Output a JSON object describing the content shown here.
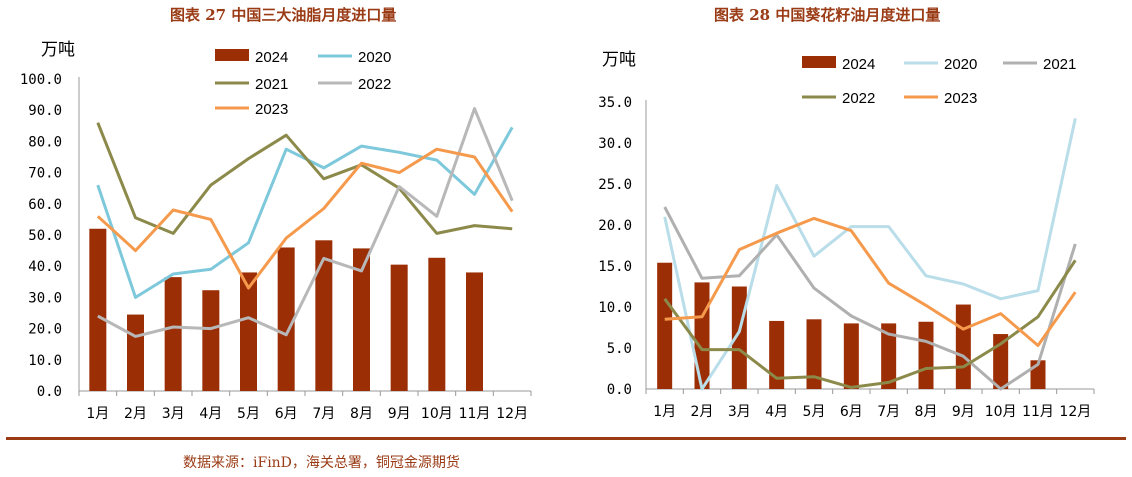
{
  "source": "数据来源：iFinD，海关总署，铜冠金源期货",
  "colors": {
    "c2024": "#9b2e05",
    "c2020": "#7ec8dc",
    "c2021": "#8c8a4a",
    "c2022": "#b8b8b8",
    "c2023": "#f59a4c",
    "c2020_light": "#b9dde9",
    "c2022_olive": "#8c8a4a",
    "c2021_grey": "#b0b0b0",
    "title": "#9a3b15"
  },
  "chart_data": [
    {
      "type": "bar+line",
      "title": "图表 27  中国三大油脂月度进口量",
      "ylabel": "万吨",
      "ylim": [
        0,
        100
      ],
      "yticks": [
        "0.0",
        "10.0",
        "20.0",
        "30.0",
        "40.0",
        "50.0",
        "60.0",
        "70.0",
        "80.0",
        "90.0",
        "100.0"
      ],
      "categories": [
        "1月",
        "2月",
        "3月",
        "4月",
        "5月",
        "6月",
        "7月",
        "8月",
        "9月",
        "10月",
        "11月",
        "12月"
      ],
      "bar_series": {
        "name": "2024",
        "values": [
          52,
          24.5,
          36.5,
          32.3,
          38,
          46,
          48.3,
          45.7,
          40.5,
          42.7,
          38,
          null
        ]
      },
      "line_series": [
        {
          "name": "2020",
          "values": [
            66,
            30,
            37.5,
            39,
            47.5,
            77.5,
            71.5,
            78.5,
            76.5,
            74,
            63,
            84.5
          ]
        },
        {
          "name": "2021",
          "values": [
            86,
            55.5,
            50.5,
            66,
            74.5,
            82,
            68,
            72.5,
            65,
            50.5,
            53,
            52
          ]
        },
        {
          "name": "2022",
          "values": [
            24,
            17.5,
            20.5,
            20,
            23.5,
            18,
            42.5,
            38.5,
            65.5,
            56,
            90.5,
            61
          ]
        },
        {
          "name": "2023",
          "values": [
            56,
            45,
            58,
            55,
            33,
            49,
            58.5,
            73,
            70,
            77.5,
            75,
            57.5
          ]
        }
      ],
      "legend": [
        "2024",
        "2020",
        "2021",
        "2022",
        "2023"
      ]
    },
    {
      "type": "bar+line",
      "title": "图表 28  中国葵花籽油月度进口量",
      "ylabel": "万吨",
      "ylim": [
        0,
        35
      ],
      "yticks": [
        "0.0",
        "5.0",
        "10.0",
        "15.0",
        "20.0",
        "25.0",
        "30.0",
        "35.0"
      ],
      "categories": [
        "1月",
        "2月",
        "3月",
        "4月",
        "5月",
        "6月",
        "7月",
        "8月",
        "9月",
        "10月",
        "11月",
        "12月"
      ],
      "bar_series": {
        "name": "2024",
        "values": [
          15.4,
          13,
          12.5,
          8.3,
          8.5,
          8,
          8,
          8.2,
          10.3,
          6.7,
          3.5,
          null
        ]
      },
      "line_series": [
        {
          "name": "2020",
          "values": [
            21,
            0,
            7,
            24.8,
            16.2,
            19.8,
            19.8,
            13.8,
            12.8,
            11,
            12,
            33
          ]
        },
        {
          "name": "2021",
          "values": [
            22.2,
            13.5,
            13.8,
            18.8,
            12.3,
            8.9,
            6.7,
            5.8,
            4,
            0,
            3,
            17.7
          ]
        },
        {
          "name": "2022",
          "values": [
            11,
            4.8,
            4.8,
            1.3,
            1.5,
            0.2,
            0.8,
            2.5,
            2.7,
            5.5,
            8.8,
            15.7
          ]
        },
        {
          "name": "2023",
          "values": [
            8.5,
            8.8,
            17,
            19,
            20.8,
            19.3,
            12.9,
            10.2,
            7.3,
            9.2,
            5.3,
            11.8
          ]
        }
      ],
      "legend": [
        "2024",
        "2020",
        "2021",
        "2022",
        "2023"
      ]
    }
  ]
}
